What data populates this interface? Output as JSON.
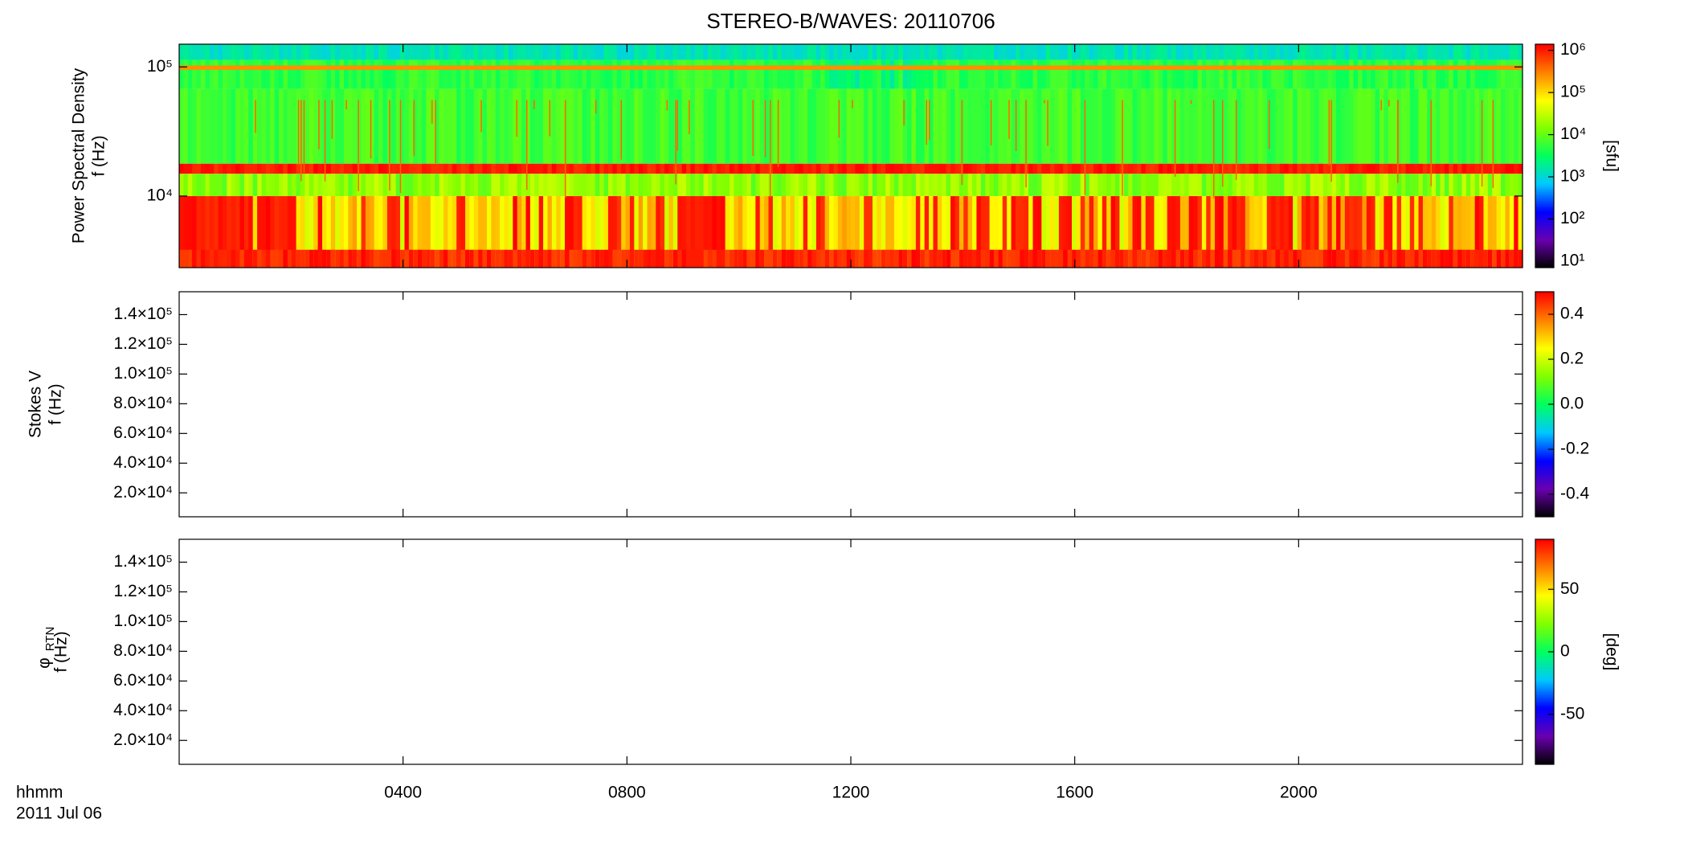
{
  "chart_data": {
    "type": "heatmap",
    "title": "STEREO-B/WAVES: 20110706",
    "xlabel": "hhmm",
    "date_label": "2011 Jul 06",
    "xlim": [
      0,
      24
    ],
    "xticks": [
      {
        "value": 4,
        "label": "0400"
      },
      {
        "value": 8,
        "label": "0800"
      },
      {
        "value": 12,
        "label": "1200"
      },
      {
        "value": 16,
        "label": "1600"
      },
      {
        "value": 20,
        "label": "2000"
      }
    ],
    "colormap": [
      "#000000",
      "#6a00b0",
      "#0000ff",
      "#00c8ff",
      "#00ff60",
      "#80ff00",
      "#ffff00",
      "#ff8000",
      "#ff0000"
    ],
    "panels": [
      {
        "ylabel": [
          "Power Spectral Density",
          "f (Hz)"
        ],
        "ylog": true,
        "ylim": [
          2790,
          150000
        ],
        "yticks": [
          {
            "value": 10000,
            "label": "10⁴"
          },
          {
            "value": 100000,
            "label": "10⁵"
          }
        ],
        "colorbar": {
          "label": "[sfu]",
          "log": true,
          "zlim": [
            7,
            1400000
          ],
          "zticks": [
            {
              "value": 10,
              "label": "10¹"
            },
            {
              "value": 100,
              "label": "10²"
            },
            {
              "value": 1000,
              "label": "10³"
            },
            {
              "value": 10000,
              "label": "10⁴"
            },
            {
              "value": 100000,
              "label": "10⁵"
            },
            {
              "value": 1000000,
              "label": "10⁶"
            }
          ]
        }
      },
      {
        "ylabel": [
          "Stokes V",
          "f (Hz)"
        ],
        "ylog": false,
        "ylim": [
          3900,
          155400
        ],
        "yticks": [
          {
            "value": 20000,
            "label": "2.0×10⁴"
          },
          {
            "value": 40000,
            "label": "4.0×10⁴"
          },
          {
            "value": 60000,
            "label": "6.0×10⁴"
          },
          {
            "value": 80000,
            "label": "8.0×10⁴"
          },
          {
            "value": 100000,
            "label": "1.0×10⁵"
          },
          {
            "value": 120000,
            "label": "1.2×10⁵"
          },
          {
            "value": 140000,
            "label": "1.4×10⁵"
          }
        ],
        "colorbar": {
          "log": false,
          "zlim": [
            -0.5,
            0.5
          ],
          "zticks": [
            -0.4,
            -0.2,
            {
              "value": 0,
              "label": "0.0"
            },
            0.2,
            0.4
          ]
        }
      },
      {
        "ylabel": [
          "f (Hz)"
        ],
        "ylabel_symbol": "φ",
        "ylabel_subscript": "RTN",
        "ylog": false,
        "ylim": [
          3900,
          155400
        ],
        "yticks": [
          {
            "value": 20000,
            "label": "2.0×10⁴"
          },
          {
            "value": 40000,
            "label": "4.0×10⁴"
          },
          {
            "value": 60000,
            "label": "6.0×10⁴"
          },
          {
            "value": 80000,
            "label": "8.0×10⁴"
          },
          {
            "value": 100000,
            "label": "1.0×10⁵"
          },
          {
            "value": 120000,
            "label": "1.2×10⁵"
          },
          {
            "value": 140000,
            "label": "1.4×10⁵"
          }
        ],
        "colorbar": {
          "label": "[deg]",
          "log": false,
          "zlim": [
            -90,
            90
          ],
          "zticks": [
            -50,
            0,
            50
          ]
        }
      }
    ]
  }
}
